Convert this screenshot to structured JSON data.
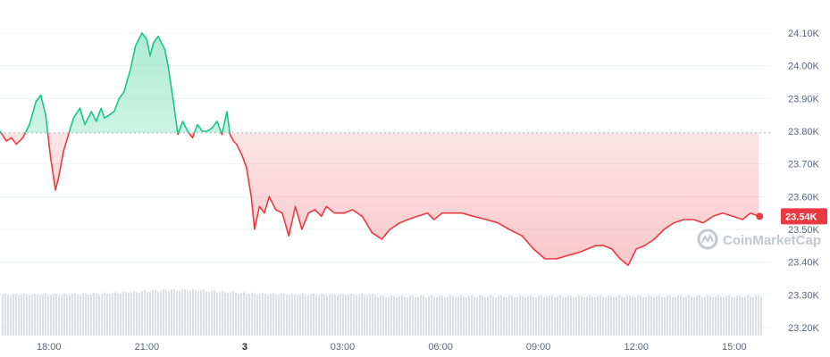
{
  "chart_data": {
    "type": "line",
    "y_axis": {
      "min": 23.2,
      "max": 24.1,
      "ticks": [
        24.1,
        24.0,
        23.9,
        23.8,
        23.7,
        23.6,
        23.5,
        23.4,
        23.3,
        23.2
      ]
    },
    "y_tick_labels": [
      "24.10K",
      "24.00K",
      "23.90K",
      "23.80K",
      "23.70K",
      "23.60K",
      "23.50K",
      "23.40K",
      "23.30K",
      "23.20K"
    ],
    "x_axis": {
      "min": 16.5,
      "max": 40.1
    },
    "x_ticks": [
      {
        "label": "18:00",
        "hour": 18,
        "bold": false
      },
      {
        "label": "21:00",
        "hour": 21,
        "bold": false
      },
      {
        "label": "3",
        "hour": 24,
        "bold": true
      },
      {
        "label": "03:00",
        "hour": 27,
        "bold": false
      },
      {
        "label": "06:00",
        "hour": 30,
        "bold": false
      },
      {
        "label": "09:00",
        "hour": 33,
        "bold": false
      },
      {
        "label": "12:00",
        "hour": 36,
        "bold": false
      },
      {
        "label": "15:00",
        "hour": 39,
        "bold": false
      }
    ],
    "reference_price": 23.795,
    "current_price_label": "23.54K",
    "current_price": 23.54,
    "watermark": "CoinMarketCap",
    "series": [
      {
        "x": [
          16.5,
          16.7,
          16.85,
          17.0,
          17.2,
          17.4,
          17.6,
          17.75,
          17.9,
          18.05,
          18.2,
          18.3,
          18.45,
          18.6,
          18.75,
          18.95,
          19.1,
          19.3,
          19.45,
          19.6,
          19.7,
          19.85,
          20.0,
          20.15,
          20.3,
          20.5,
          20.65,
          20.85,
          21.0,
          21.1,
          21.2,
          21.35,
          21.45,
          21.55,
          21.65,
          21.8,
          21.95,
          22.1,
          22.25,
          22.4,
          22.55,
          22.7,
          22.85,
          23.0,
          23.15,
          23.3,
          23.45,
          23.55,
          23.65,
          23.75,
          23.9,
          24.05,
          24.2,
          24.3,
          24.45,
          24.6,
          24.75,
          24.95,
          25.15,
          25.35,
          25.55,
          25.75,
          25.95,
          26.15,
          26.35,
          26.5,
          26.75,
          27.05,
          27.3,
          27.6,
          27.9,
          28.2,
          28.45,
          28.75,
          29.0,
          29.3,
          29.6,
          29.8,
          30.05,
          30.35,
          30.65,
          31.0,
          31.4,
          31.75,
          32.1,
          32.5,
          32.85,
          33.2,
          33.55,
          33.9,
          34.25,
          34.5,
          34.75,
          35.0,
          35.25,
          35.5,
          35.75,
          36.0,
          36.25,
          36.55,
          36.85,
          37.15,
          37.45,
          37.75,
          38.05,
          38.35,
          38.65,
          38.95,
          39.25,
          39.5,
          39.75
        ],
        "y": [
          23.8,
          23.77,
          23.78,
          23.76,
          23.78,
          23.82,
          23.89,
          23.91,
          23.85,
          23.72,
          23.62,
          23.66,
          23.74,
          23.79,
          23.84,
          23.87,
          23.82,
          23.86,
          23.83,
          23.87,
          23.84,
          23.85,
          23.86,
          23.9,
          23.92,
          23.99,
          24.06,
          24.1,
          24.08,
          24.03,
          24.07,
          24.09,
          24.07,
          24.05,
          24.0,
          23.9,
          23.79,
          23.83,
          23.8,
          23.78,
          23.82,
          23.8,
          23.8,
          23.81,
          23.83,
          23.79,
          23.86,
          23.79,
          23.77,
          23.76,
          23.73,
          23.69,
          23.6,
          23.5,
          23.57,
          23.55,
          23.6,
          23.56,
          23.55,
          23.48,
          23.57,
          23.5,
          23.55,
          23.56,
          23.54,
          23.57,
          23.55,
          23.55,
          23.56,
          23.54,
          23.49,
          23.47,
          23.5,
          23.52,
          23.53,
          23.54,
          23.55,
          23.53,
          23.55,
          23.55,
          23.55,
          23.54,
          23.53,
          23.52,
          23.5,
          23.48,
          23.44,
          23.41,
          23.41,
          23.42,
          23.43,
          23.44,
          23.45,
          23.45,
          23.44,
          23.41,
          23.39,
          23.44,
          23.45,
          23.47,
          23.5,
          23.52,
          23.53,
          23.53,
          23.52,
          23.54,
          23.55,
          23.54,
          23.53,
          23.55,
          23.54
        ]
      }
    ],
    "colors": {
      "up": "#16c784",
      "down": "#ea3943",
      "grid": "#eff2f5",
      "axis_text": "#58667e",
      "reference_line": "#a6b0c3",
      "volume": "#dcdfe4",
      "label_bg": "#ea3943"
    }
  }
}
